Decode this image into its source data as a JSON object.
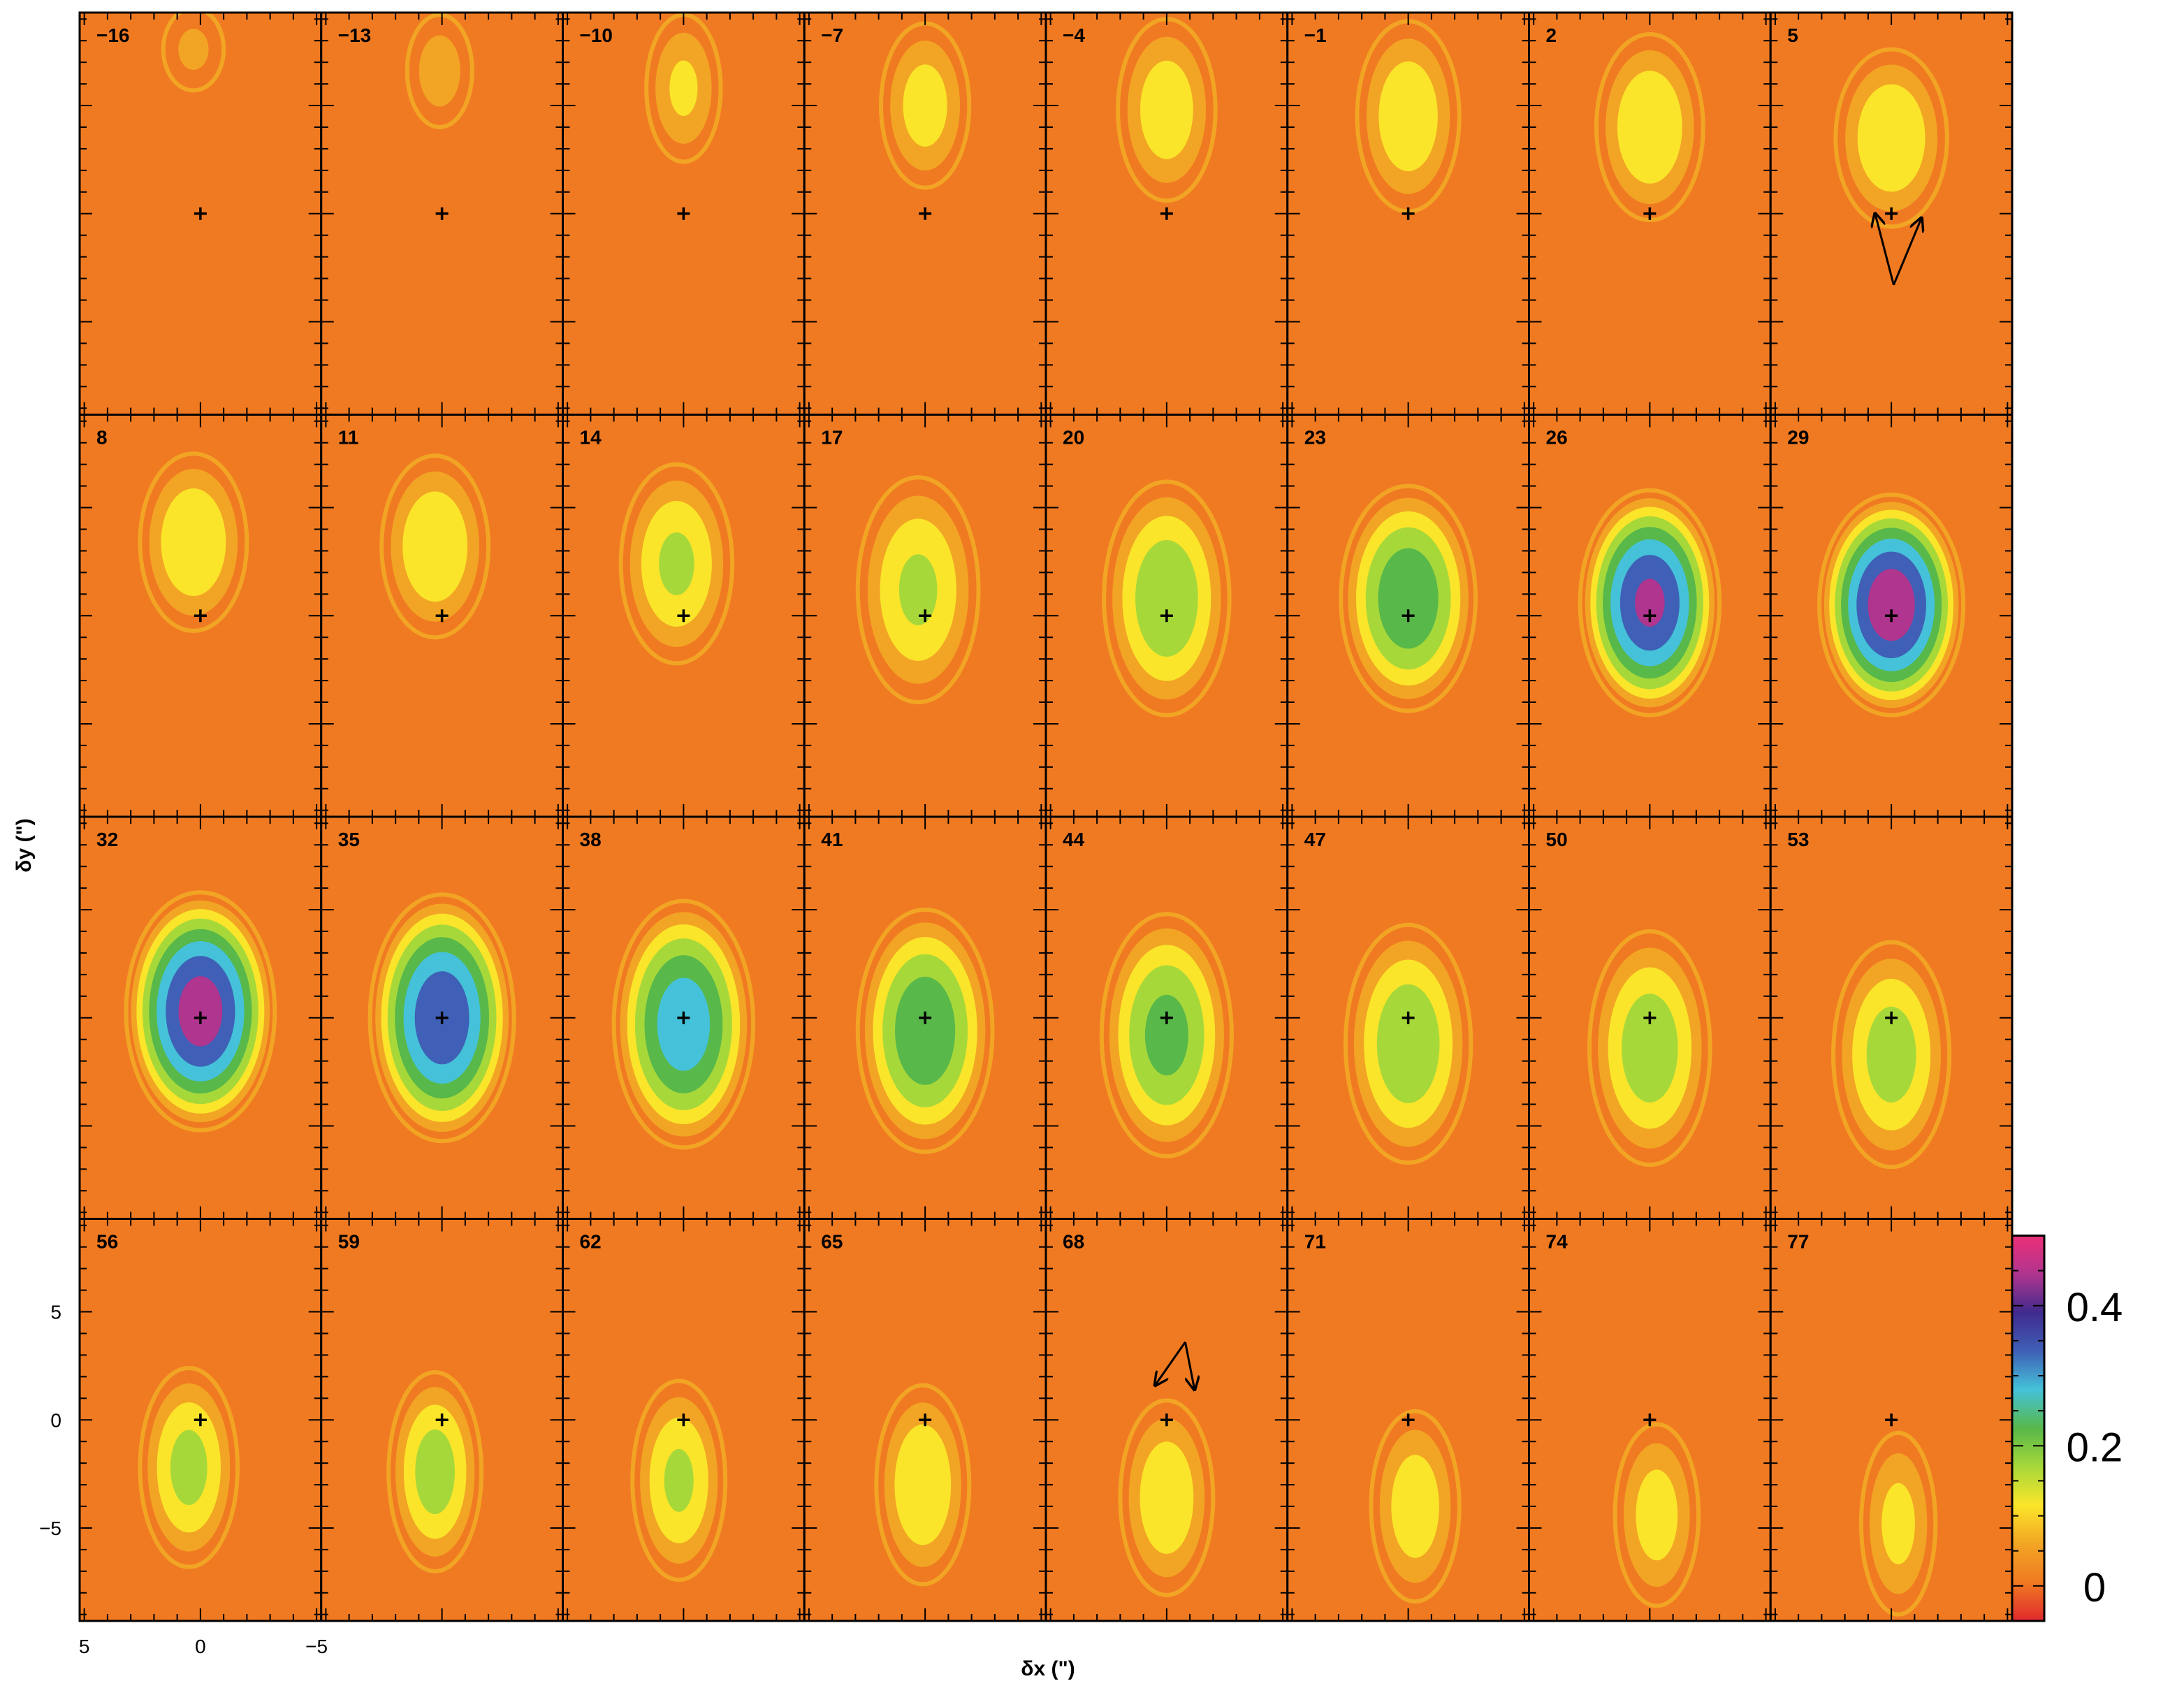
{
  "chart_data": {
    "type": "heatmap",
    "title": "",
    "layout": {
      "rows": 4,
      "cols": 8
    },
    "panel_labels": [
      "−16",
      "−13",
      "−10",
      "−7",
      "−4",
      "−1",
      "2",
      "5",
      "8",
      "11",
      "14",
      "17",
      "20",
      "23",
      "26",
      "29",
      "32",
      "35",
      "38",
      "41",
      "44",
      "47",
      "50",
      "53",
      "56",
      "59",
      "62",
      "65",
      "68",
      "71",
      "74",
      "77"
    ],
    "xlabel": "δx (\")",
    "ylabel": "δy (\")",
    "x_ticks": [
      "5",
      "0",
      "−5"
    ],
    "y_ticks": [
      "5",
      "0",
      "−5"
    ],
    "xlim": [
      5.2,
      -5.2
    ],
    "ylim": [
      -9.3,
      9.3
    ],
    "colorbar": {
      "ticks": [
        "0.4",
        "0.2",
        "0"
      ],
      "range": [
        -0.05,
        0.5
      ],
      "colors": [
        "#e0282c",
        "#f07a22",
        "#f2a524",
        "#fbe52a",
        "#a7d83a",
        "#58b84a",
        "#45c2d9",
        "#3f60b6",
        "#402a8e",
        "#b0358f",
        "#ec2f77"
      ]
    },
    "marker": "+",
    "arrows_panels": [
      "5",
      "68"
    ],
    "emission_series": [
      {
        "panel": "−16",
        "cx": 0.3,
        "cy": 7.6,
        "rx": 1.3,
        "ry": 1.9,
        "peak": 0.06
      },
      {
        "panel": "−13",
        "cx": 0.1,
        "cy": 6.6,
        "rx": 1.4,
        "ry": 2.6,
        "peak": 0.08
      },
      {
        "panel": "−10",
        "cx": 0.0,
        "cy": 5.8,
        "rx": 1.6,
        "ry": 3.4,
        "peak": 0.12
      },
      {
        "panel": "−7",
        "cx": 0.0,
        "cy": 5.0,
        "rx": 1.9,
        "ry": 3.8,
        "peak": 0.14
      },
      {
        "panel": "−4",
        "cx": 0.0,
        "cy": 4.8,
        "rx": 2.1,
        "ry": 4.2,
        "peak": 0.15
      },
      {
        "panel": "−1",
        "cx": 0.0,
        "cy": 4.5,
        "rx": 2.2,
        "ry": 4.4,
        "peak": 0.16
      },
      {
        "panel": "2",
        "cx": 0.0,
        "cy": 4.0,
        "rx": 2.3,
        "ry": 4.3,
        "peak": 0.17
      },
      {
        "panel": "5",
        "cx": 0.0,
        "cy": 3.5,
        "rx": 2.4,
        "ry": 4.1,
        "peak": 0.17
      },
      {
        "panel": "8",
        "cx": 0.3,
        "cy": 3.4,
        "rx": 2.3,
        "ry": 4.1,
        "peak": 0.17
      },
      {
        "panel": "11",
        "cx": 0.3,
        "cy": 3.2,
        "rx": 2.3,
        "ry": 4.2,
        "peak": 0.17
      },
      {
        "panel": "14",
        "cx": 0.3,
        "cy": 2.4,
        "rx": 2.4,
        "ry": 4.6,
        "peak": 0.18
      },
      {
        "panel": "17",
        "cx": 0.3,
        "cy": 1.2,
        "rx": 2.6,
        "ry": 5.2,
        "peak": 0.18
      },
      {
        "panel": "20",
        "cx": 0.0,
        "cy": 0.8,
        "rx": 2.7,
        "ry": 5.4,
        "peak": 0.22
      },
      {
        "panel": "23",
        "cx": 0.0,
        "cy": 0.8,
        "rx": 2.9,
        "ry": 5.2,
        "peak": 0.28
      },
      {
        "panel": "26",
        "cx": 0.0,
        "cy": 0.6,
        "rx": 3.0,
        "ry": 5.2,
        "peak": 0.42
      },
      {
        "panel": "29",
        "cx": 0.0,
        "cy": 0.5,
        "rx": 3.1,
        "ry": 5.1,
        "peak": 0.45
      },
      {
        "panel": "32",
        "cx": 0.0,
        "cy": 0.3,
        "rx": 3.2,
        "ry": 5.5,
        "peak": 0.44
      },
      {
        "panel": "35",
        "cx": 0.0,
        "cy": 0.0,
        "rx": 3.1,
        "ry": 5.7,
        "peak": 0.4
      },
      {
        "panel": "38",
        "cx": 0.0,
        "cy": -0.3,
        "rx": 3.0,
        "ry": 5.7,
        "peak": 0.33
      },
      {
        "panel": "41",
        "cx": 0.0,
        "cy": -0.6,
        "rx": 2.9,
        "ry": 5.6,
        "peak": 0.28
      },
      {
        "panel": "44",
        "cx": 0.0,
        "cy": -0.8,
        "rx": 2.8,
        "ry": 5.6,
        "peak": 0.25
      },
      {
        "panel": "47",
        "cx": 0.0,
        "cy": -1.2,
        "rx": 2.7,
        "ry": 5.5,
        "peak": 0.22
      },
      {
        "panel": "50",
        "cx": 0.0,
        "cy": -1.4,
        "rx": 2.6,
        "ry": 5.4,
        "peak": 0.21
      },
      {
        "panel": "53",
        "cx": 0.0,
        "cy": -1.7,
        "rx": 2.5,
        "ry": 5.2,
        "peak": 0.2
      },
      {
        "panel": "56",
        "cx": 0.5,
        "cy": -2.2,
        "rx": 2.1,
        "ry": 4.6,
        "peak": 0.19
      },
      {
        "panel": "59",
        "cx": 0.3,
        "cy": -2.4,
        "rx": 2.0,
        "ry": 4.6,
        "peak": 0.2
      },
      {
        "panel": "62",
        "cx": 0.2,
        "cy": -2.8,
        "rx": 2.0,
        "ry": 4.6,
        "peak": 0.18
      },
      {
        "panel": "65",
        "cx": 0.1,
        "cy": -3.0,
        "rx": 2.0,
        "ry": 4.6,
        "peak": 0.17
      },
      {
        "panel": "68",
        "cx": 0.0,
        "cy": -3.6,
        "rx": 2.0,
        "ry": 4.5,
        "peak": 0.16
      },
      {
        "panel": "71",
        "cx": -0.3,
        "cy": -4.0,
        "rx": 1.9,
        "ry": 4.4,
        "peak": 0.15
      },
      {
        "panel": "74",
        "cx": -0.3,
        "cy": -4.4,
        "rx": 1.8,
        "ry": 4.2,
        "peak": 0.14
      },
      {
        "panel": "77",
        "cx": -0.3,
        "cy": -4.8,
        "rx": 1.6,
        "ry": 4.2,
        "peak": 0.13
      }
    ]
  }
}
